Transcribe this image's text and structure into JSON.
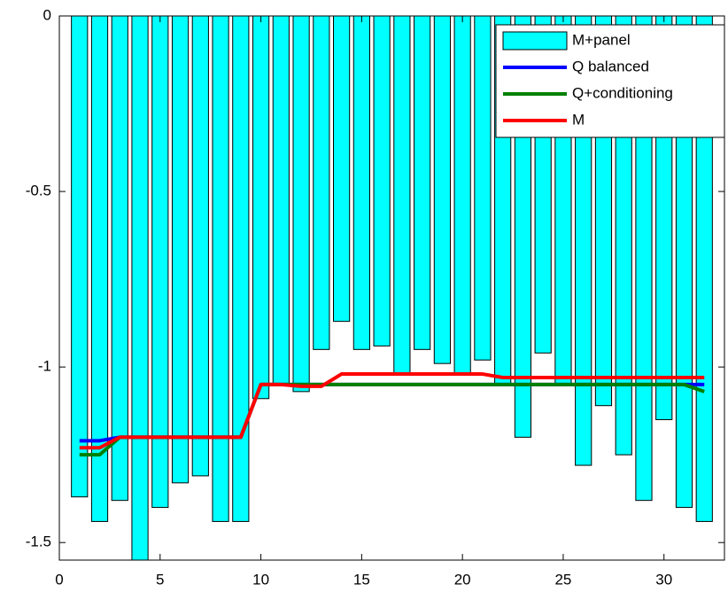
{
  "chart_data": {
    "type": "bar",
    "x": [
      1,
      2,
      3,
      4,
      5,
      6,
      7,
      8,
      9,
      10,
      11,
      12,
      13,
      14,
      15,
      16,
      17,
      18,
      19,
      20,
      21,
      22,
      23,
      24,
      25,
      26,
      27,
      28,
      29,
      30,
      31,
      32
    ],
    "series": [
      {
        "name": "M+panel",
        "type": "bar",
        "color": "#00ffff",
        "values": [
          -1.37,
          -1.44,
          -1.38,
          -1.55,
          -1.4,
          -1.33,
          -1.31,
          -1.44,
          -1.44,
          -1.09,
          -1.05,
          -1.07,
          -0.95,
          -0.87,
          -0.95,
          -0.94,
          -1.02,
          -0.95,
          -0.99,
          -1.02,
          -0.98,
          -1.05,
          -1.2,
          -0.96,
          -1.05,
          -1.28,
          -1.11,
          -1.25,
          -1.38,
          -1.15,
          -1.4,
          -1.44
        ]
      },
      {
        "name": "Q balanced",
        "type": "line",
        "color": "#0000ff",
        "values": [
          -1.21,
          -1.21,
          -1.2,
          -1.2,
          -1.2,
          -1.2,
          -1.2,
          -1.2,
          -1.2,
          -1.05,
          -1.05,
          -1.05,
          -1.05,
          -1.05,
          -1.05,
          -1.05,
          -1.05,
          -1.05,
          -1.05,
          -1.05,
          -1.05,
          -1.05,
          -1.05,
          -1.05,
          -1.05,
          -1.05,
          -1.05,
          -1.05,
          -1.05,
          -1.05,
          -1.05,
          -1.05
        ]
      },
      {
        "name": "Q+conditioning",
        "type": "line",
        "color": "#008000",
        "values": [
          -1.25,
          -1.25,
          -1.2,
          -1.2,
          -1.2,
          -1.2,
          -1.2,
          -1.2,
          -1.2,
          -1.05,
          -1.05,
          -1.05,
          -1.05,
          -1.05,
          -1.05,
          -1.05,
          -1.05,
          -1.05,
          -1.05,
          -1.05,
          -1.05,
          -1.05,
          -1.05,
          -1.05,
          -1.05,
          -1.05,
          -1.05,
          -1.05,
          -1.05,
          -1.05,
          -1.05,
          -1.07
        ]
      },
      {
        "name": "M",
        "type": "line",
        "color": "#ff0000",
        "values": [
          -1.23,
          -1.23,
          -1.2,
          -1.2,
          -1.2,
          -1.2,
          -1.2,
          -1.2,
          -1.2,
          -1.05,
          -1.05,
          -1.055,
          -1.055,
          -1.02,
          -1.02,
          -1.02,
          -1.02,
          -1.02,
          -1.02,
          -1.02,
          -1.02,
          -1.03,
          -1.03,
          -1.03,
          -1.03,
          -1.03,
          -1.03,
          -1.03,
          -1.03,
          -1.03,
          -1.03,
          -1.03
        ]
      }
    ],
    "xlim": [
      0,
      33
    ],
    "xticks": [
      0,
      5,
      10,
      15,
      20,
      25,
      30
    ],
    "ylim": [
      -1.55,
      0
    ],
    "yticks": [
      -1.5,
      -1,
      -0.5,
      0
    ],
    "legend": "top-right"
  }
}
